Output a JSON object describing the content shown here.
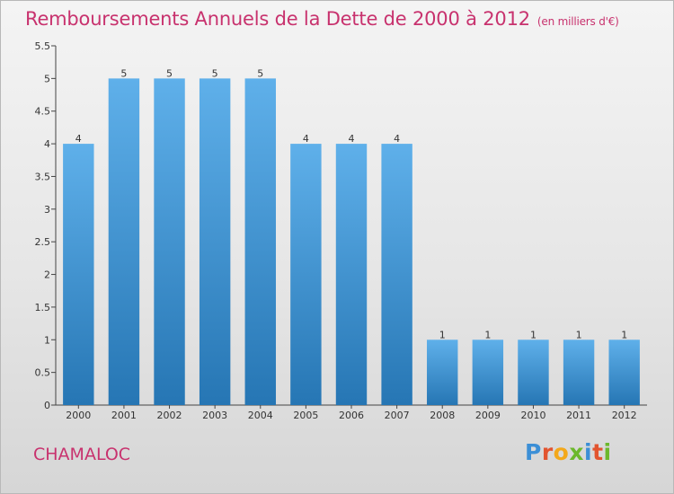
{
  "title": "Remboursements Annuels de la Dette de 2000 à 2012",
  "unit": "(en milliers d'€)",
  "commune": "CHAMALOC",
  "logo": {
    "text": "Proxiti",
    "colors": [
      "#3c8fd6",
      "#e2542f",
      "#f3a81b",
      "#6cb82c",
      "#3c8fd6",
      "#e2542f",
      "#6cb82c"
    ]
  },
  "colors": {
    "title": "#c8326e",
    "bar_top": "#5fb0ea",
    "bar_bottom": "#2676b4"
  },
  "chart_data": {
    "type": "bar",
    "categories": [
      "2000",
      "2001",
      "2002",
      "2003",
      "2004",
      "2005",
      "2006",
      "2007",
      "2008",
      "2009",
      "2010",
      "2011",
      "2012"
    ],
    "values": [
      4,
      5,
      5,
      5,
      5,
      4,
      4,
      4,
      1,
      1,
      1,
      1,
      1
    ],
    "data_labels": [
      "4",
      "5",
      "5",
      "5",
      "5",
      "4",
      "4",
      "4",
      "1",
      "1",
      "1",
      "1",
      "1"
    ],
    "yticks": [
      "0",
      "0.5",
      "1",
      "1.5",
      "2",
      "2.5",
      "3",
      "3.5",
      "4",
      "4.5",
      "5",
      "5.5"
    ],
    "ylim": [
      0,
      5.5
    ],
    "grid": false
  }
}
